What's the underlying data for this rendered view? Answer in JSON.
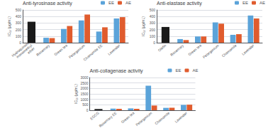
{
  "chart_data": [
    {
      "type": "bar",
      "title": "Anti-tyrosinase activity",
      "ylabel": "IC₅₀ (μg/mL)",
      "categories": [
        "Hydroquinone\nmonomethyl\nether",
        "Rosemary",
        "Green tea",
        "Pelargonium",
        "Chamomile EE",
        "Lavender"
      ],
      "series": [
        {
          "name": "EE",
          "color": "#5ba3d9",
          "values": [
            null,
            75,
            210,
            340,
            170,
            370
          ]
        },
        {
          "name": "AE",
          "color": "#e05c2e",
          "values": [
            null,
            70,
            255,
            430,
            235,
            390
          ]
        },
        {
          "color": "#1a1a1a",
          "values": [
            320,
            null,
            null,
            null,
            null,
            null
          ]
        }
      ],
      "ylim": [
        0,
        500
      ],
      "yticks": [
        0,
        100,
        200,
        300,
        400,
        500
      ],
      "grid": true,
      "legend": "upper right"
    },
    {
      "type": "bar",
      "title": "Anti-elastase activity",
      "ylabel": "IC₅₀ (μg/mL)",
      "categories": [
        "Olefin",
        "Rosemary",
        "Green tea",
        "Pelargonium",
        "Chamomile",
        "Lavender"
      ],
      "series": [
        {
          "name": "EE",
          "color": "#5ba3d9",
          "values": [
            null,
            55,
            95,
            310,
            120,
            415
          ]
        },
        {
          "name": "AE",
          "color": "#e05c2e",
          "values": [
            null,
            40,
            95,
            290,
            130,
            370
          ]
        },
        {
          "color": "#1a1a1a",
          "values": [
            240,
            null,
            null,
            null,
            null,
            null
          ]
        }
      ],
      "ylim": [
        0,
        500
      ],
      "yticks": [
        0,
        100,
        200,
        300,
        400,
        500
      ],
      "grid": true,
      "legend": "upper right"
    },
    {
      "type": "bar",
      "title": "Anti-collagenase activity",
      "ylabel": "IC₅₀ (μg/mL)",
      "categories": [
        "EGCG",
        "Rosemary EE",
        "Green tea",
        "Pelargonium",
        "Chamomile",
        "Lavender"
      ],
      "series": [
        {
          "name": "EE",
          "color": "#5ba3d9",
          "values": [
            null,
            150,
            170,
            2250,
            220,
            490
          ]
        },
        {
          "name": "AE",
          "color": "#e05c2e",
          "values": [
            null,
            130,
            130,
            430,
            230,
            510
          ]
        },
        {
          "color": "#1a1a1a",
          "values": [
            110,
            null,
            null,
            null,
            null,
            null
          ]
        }
      ],
      "ylim": [
        0,
        3000
      ],
      "yticks": [
        0,
        500,
        1000,
        1500,
        2000,
        2500,
        3000
      ],
      "grid": true,
      "legend": "upper right"
    }
  ]
}
